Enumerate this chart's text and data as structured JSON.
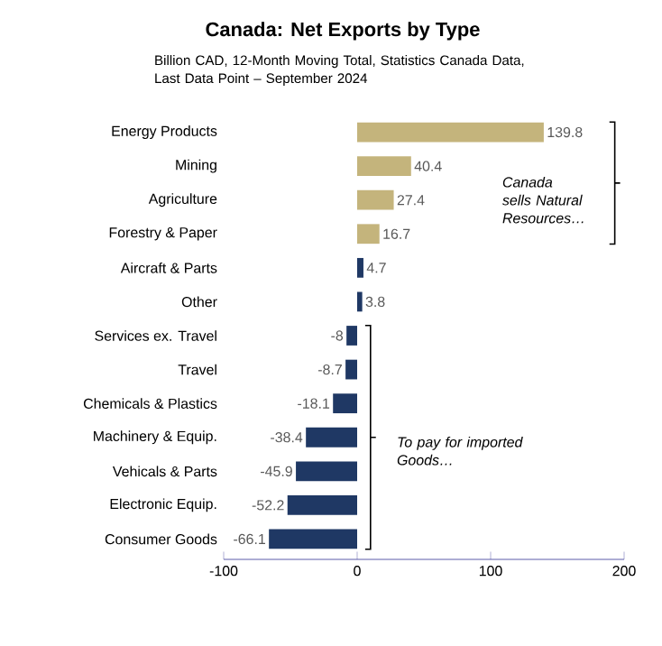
{
  "chart_data": {
    "type": "bar",
    "orientation": "horizontal",
    "title": "Canada: Net Exports by Type",
    "subtitle": "Billion CAD, 12-Month Moving Total, Statistics Canada Data, Last Data Point – September 2024",
    "categories": [
      "Energy Products",
      "Mining",
      "Agriculture",
      "Forestry & Paper",
      "Aircraft & Parts",
      "Other",
      "Services ex. Travel",
      "Travel",
      "Chemicals & Plastics",
      "Machinery & Equip.",
      "Vehicals & Parts",
      "Electronic Equip.",
      "Consumer Goods"
    ],
    "values": [
      139.8,
      40.4,
      27.4,
      16.7,
      4.7,
      3.8,
      -8,
      -8.7,
      -18.1,
      -38.4,
      -45.9,
      -52.2,
      -66.1
    ],
    "colors": [
      "#c4b47c",
      "#c4b47c",
      "#c4b47c",
      "#c4b47c",
      "#1f3864",
      "#1f3864",
      "#1f3864",
      "#1f3864",
      "#1f3864",
      "#1f3864",
      "#1f3864",
      "#1f3864",
      "#1f3864"
    ],
    "xlim": [
      -100,
      200
    ],
    "xticks": [
      -100,
      0,
      100,
      200
    ],
    "data_labels": true,
    "grid": false,
    "annotations": [
      "Canada sells Natural Resources…",
      "To pay for imported Goods…"
    ]
  }
}
